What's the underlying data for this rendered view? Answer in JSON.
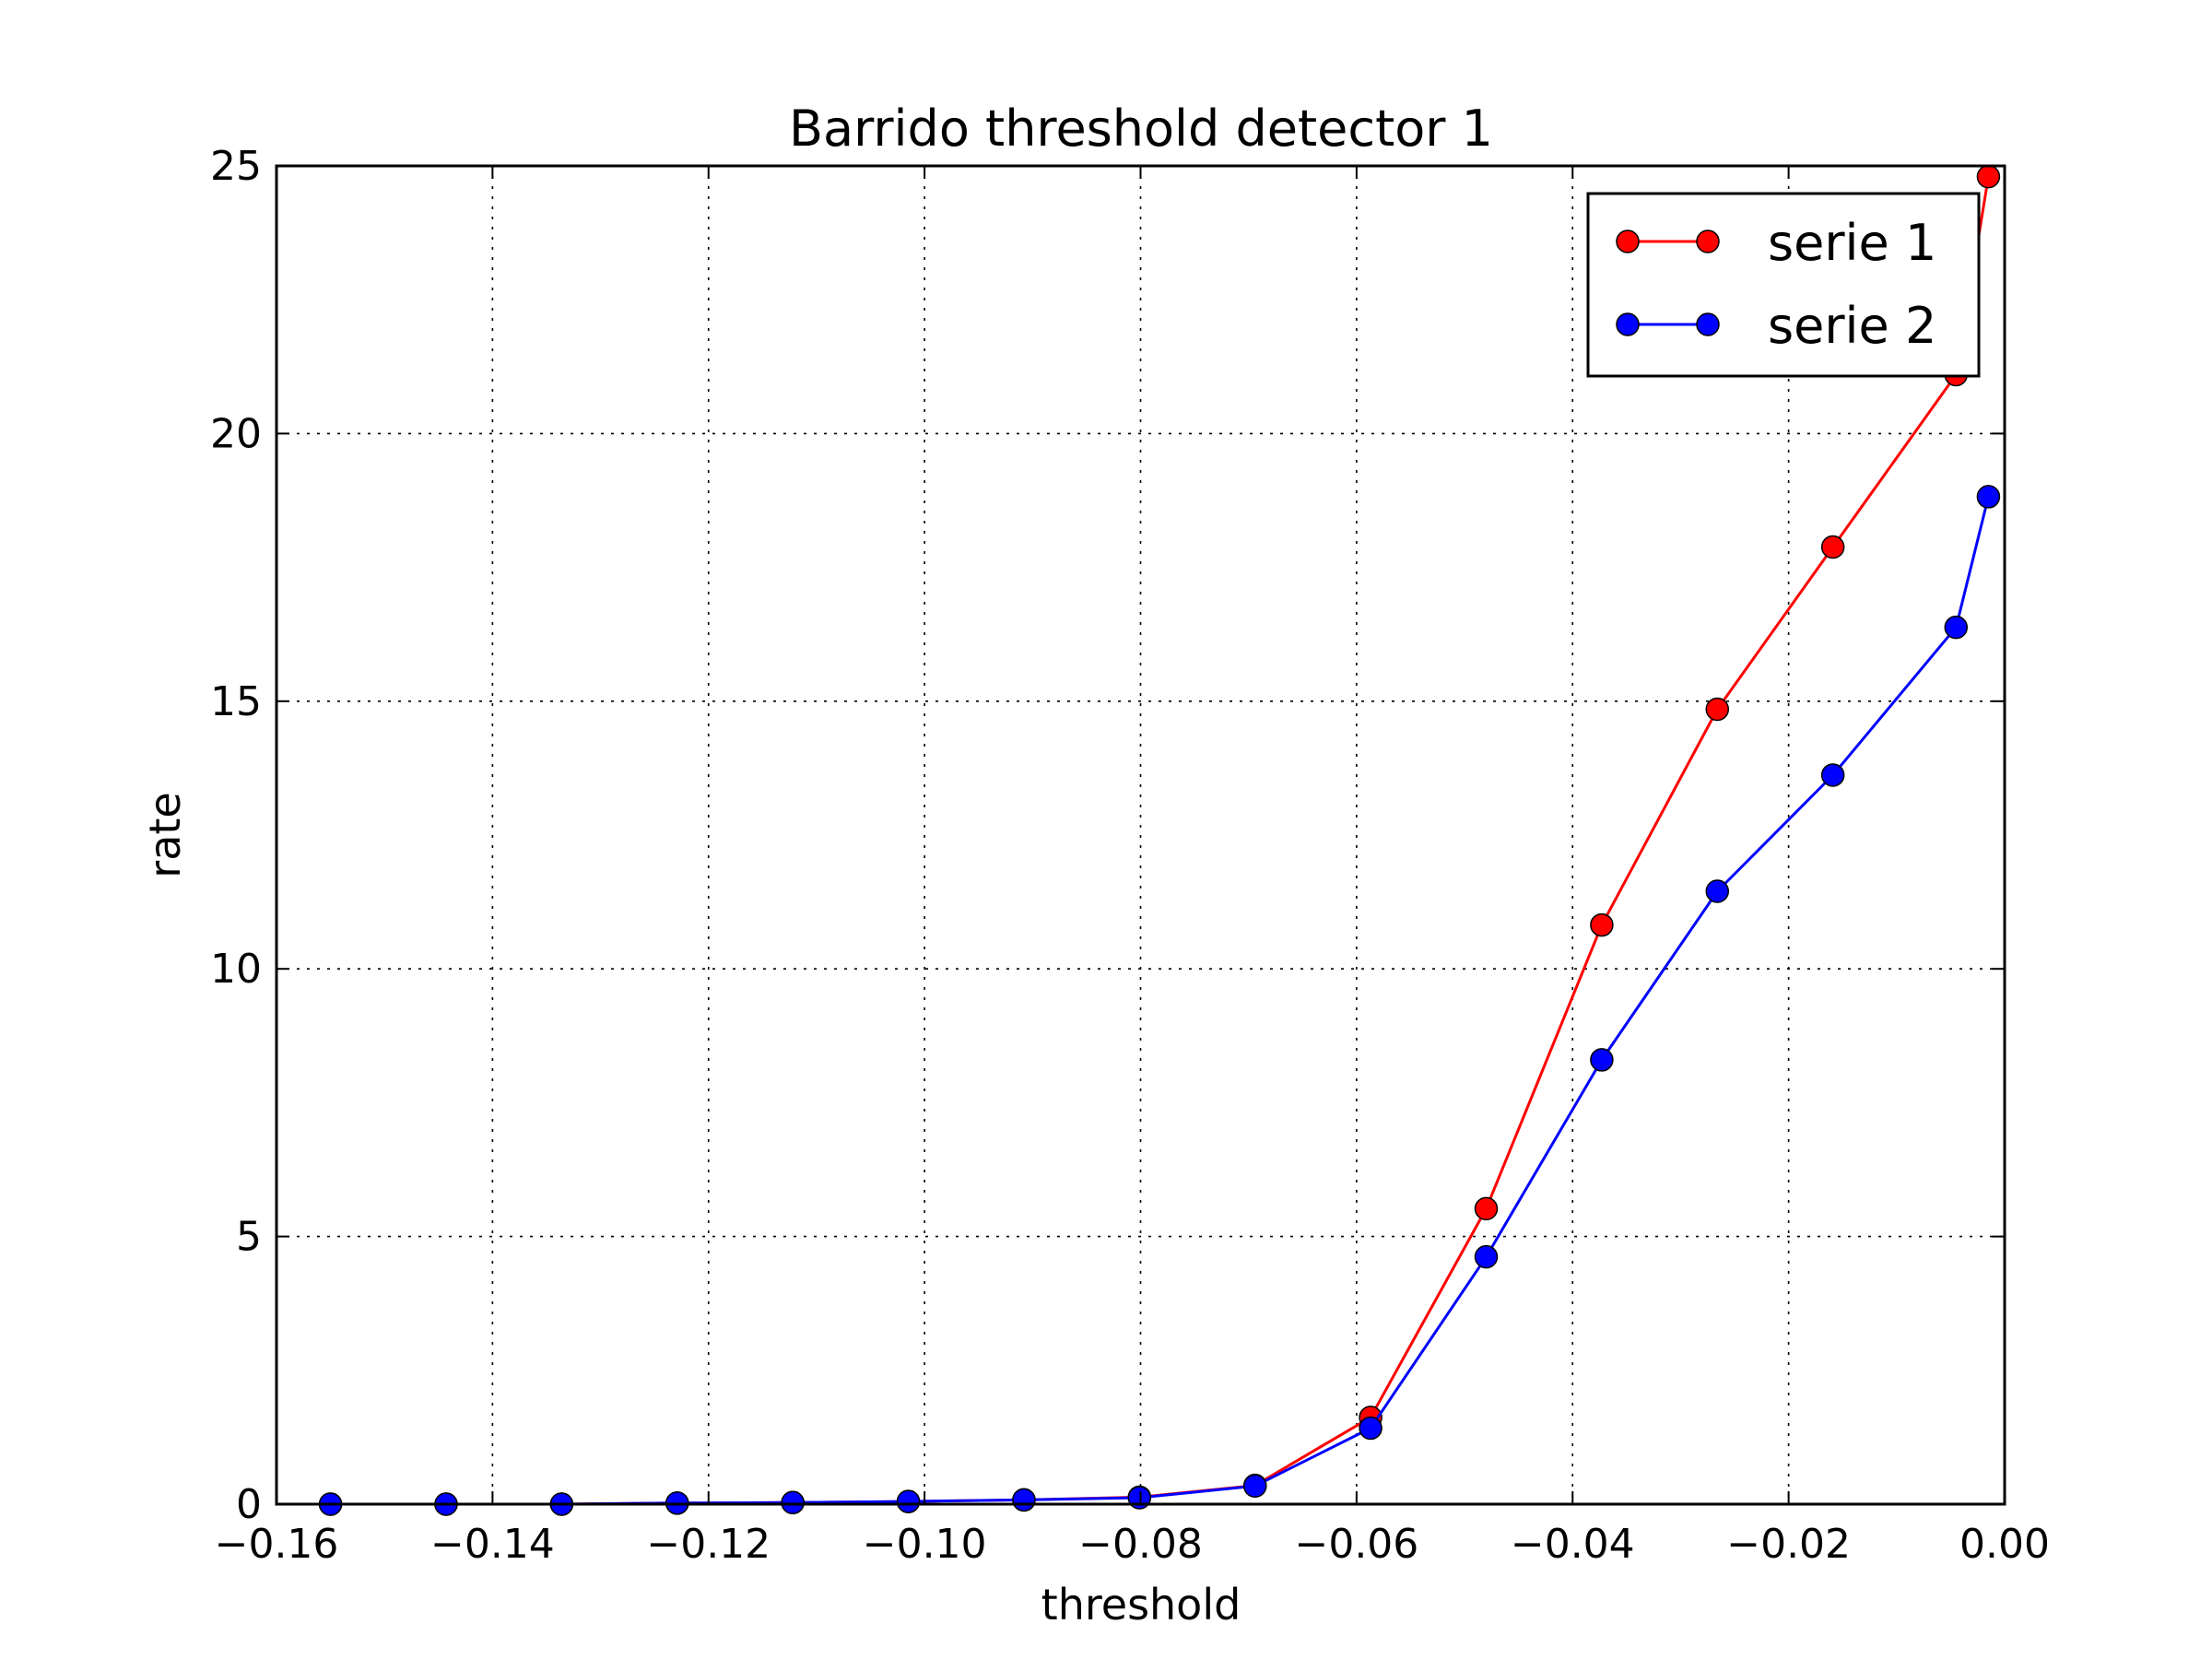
{
  "chart_data": {
    "type": "line",
    "title": "Barrido threshold detector 1",
    "xlabel": "threshold",
    "ylabel": "rate",
    "xlim": [
      -0.16,
      0.0
    ],
    "ylim": [
      0,
      25
    ],
    "grid": true,
    "legend_position": "top-right",
    "x_ticks": [
      -0.16,
      -0.14,
      -0.12,
      -0.1,
      -0.08,
      -0.06,
      -0.04,
      -0.02,
      0.0
    ],
    "x_tick_labels": [
      "−0.16",
      "−0.14",
      "−0.12",
      "−0.10",
      "−0.08",
      "−0.06",
      "−0.04",
      "−0.02",
      "0.00"
    ],
    "y_ticks": [
      0,
      5,
      10,
      15,
      20,
      25
    ],
    "y_tick_labels": [
      "0",
      "5",
      "10",
      "15",
      "20",
      "25"
    ],
    "series": [
      {
        "name": "serie 1",
        "color": "#ff0000",
        "x": [
          -0.155,
          -0.1443,
          -0.1336,
          -0.1229,
          -0.1122,
          -0.1015,
          -0.0908,
          -0.0801,
          -0.0694,
          -0.0587,
          -0.048,
          -0.0373,
          -0.0266,
          -0.0159,
          -0.0045,
          -0.0015
        ],
        "y": [
          0.0,
          0.0,
          0.0,
          0.02,
          0.03,
          0.05,
          0.08,
          0.13,
          0.35,
          1.62,
          5.52,
          10.82,
          14.85,
          17.88,
          21.1,
          24.8
        ]
      },
      {
        "name": "serie 2",
        "color": "#0000ff",
        "x": [
          -0.155,
          -0.1443,
          -0.1336,
          -0.1229,
          -0.1122,
          -0.1015,
          -0.0908,
          -0.0801,
          -0.0694,
          -0.0587,
          -0.048,
          -0.0373,
          -0.0266,
          -0.0159,
          -0.0045,
          -0.0015
        ],
        "y": [
          0.0,
          0.0,
          0.0,
          0.02,
          0.03,
          0.05,
          0.08,
          0.12,
          0.34,
          1.42,
          4.62,
          8.3,
          11.45,
          13.62,
          16.38,
          18.82
        ]
      }
    ]
  }
}
